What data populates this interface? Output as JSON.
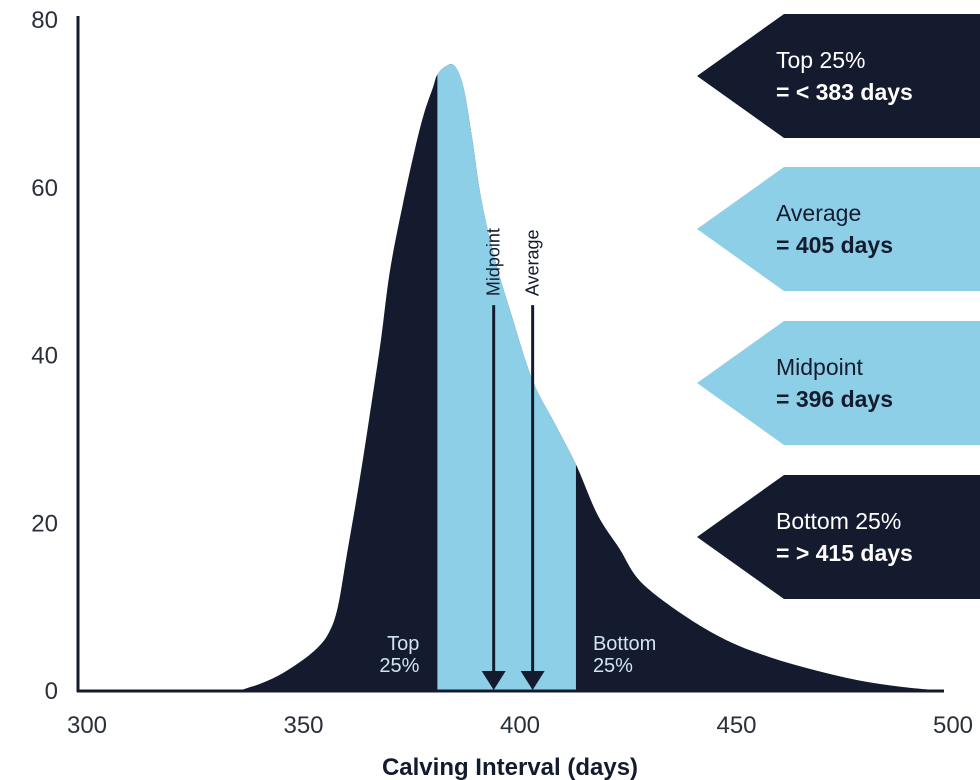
{
  "chart_data": {
    "type": "area",
    "xlabel": "Calving Interval (days)",
    "ylabel": "",
    "xlim": [
      300,
      500
    ],
    "ylim": [
      0,
      80
    ],
    "x_ticks": [
      "300",
      "350",
      "400",
      "450",
      "500"
    ],
    "y_ticks": [
      "0",
      "20",
      "40",
      "60",
      "80"
    ],
    "grid": false,
    "colors": {
      "dark": "#141b2f",
      "light": "#8ecfe8",
      "axis": "#141b2f"
    },
    "curve": {
      "x": [
        300,
        320,
        335,
        340,
        345,
        350,
        355,
        358,
        360,
        362,
        365,
        368,
        370,
        372,
        375,
        378,
        380,
        382,
        383,
        385,
        387,
        389,
        391,
        393,
        396,
        400,
        405,
        410,
        415,
        420,
        425,
        430,
        440,
        450,
        460,
        470,
        480,
        490,
        500
      ],
      "y": [
        0,
        0,
        0,
        0.5,
        1.5,
        3,
        5,
        7,
        10,
        16,
        25,
        35,
        42,
        50,
        58,
        65,
        69,
        72,
        73.5,
        74.5,
        74.5,
        72,
        66,
        59,
        52,
        45,
        37,
        32,
        27,
        21,
        17,
        13,
        9,
        6,
        4,
        2.5,
        1.3,
        0.5,
        0
      ]
    },
    "band": {
      "start": 383,
      "end": 415
    },
    "quartile_labels": [
      {
        "id": "top",
        "x": 375,
        "line1": "Top",
        "line2": "25%"
      },
      {
        "id": "bottom",
        "x": 420,
        "line1": "Bottom",
        "line2": "25%"
      }
    ],
    "markers": [
      {
        "id": "midpoint",
        "label": "Midpoint",
        "x": 396
      },
      {
        "id": "average",
        "label": "Average",
        "x": 405
      }
    ],
    "marker_y_top": 46,
    "callouts": [
      {
        "id": "top",
        "title": "Top 25%",
        "value": "= < 383 days",
        "style": "dark"
      },
      {
        "id": "average",
        "title": "Average",
        "value": "= 405 days",
        "style": "light"
      },
      {
        "id": "midpoint",
        "title": "Midpoint",
        "value": "= 396 days",
        "style": "light"
      },
      {
        "id": "bottom",
        "title": "Bottom 25%",
        "value": "= > 415 days",
        "style": "dark"
      }
    ]
  }
}
